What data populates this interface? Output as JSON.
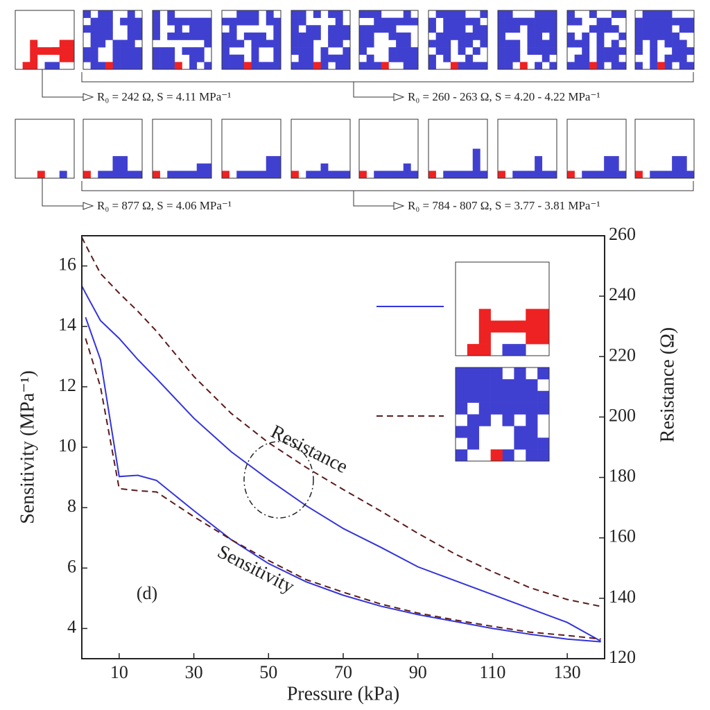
{
  "top_panel": {
    "annotations": [
      "R₀ = 242 Ω,  S = 4.11 MPa⁻¹",
      "R₀ = 260 - 263 Ω,  S = 4.20 - 4.22 MPa⁻¹",
      "R₀ = 877 Ω,  S = 4.06 MPa⁻¹",
      "R₀ = 784 - 807 Ω,  S = 3.77 - 3.81 MPa⁻¹"
    ]
  },
  "chart_data": {
    "type": "line",
    "xlabel": "Pressure (kPa)",
    "ylabel": "Sensitivity (MPa⁻¹)",
    "y2label": "Resistance (Ω)",
    "annotations": [
      "Resistance",
      "Sensitivity",
      "(d)"
    ],
    "x": [
      0,
      1,
      5,
      10,
      15,
      20,
      30,
      40,
      50,
      60,
      70,
      80,
      90,
      100,
      110,
      120,
      130,
      139
    ],
    "series": [
      {
        "color": "#3333dd",
        "linestyle": "solid",
        "axis": "y2",
        "values": [
          243.4,
          241,
          231.9,
          226,
          219,
          212.7,
          199.6,
          188.5,
          179.3,
          170.7,
          163.1,
          156.9,
          150.4,
          145.8,
          141.2,
          136.6,
          132,
          125.8
        ]
      },
      {
        "color": "#5a1a1a",
        "linestyle": "dashed",
        "axis": "y2",
        "values": [
          259.5,
          257,
          247.5,
          241,
          235,
          228.4,
          213.4,
          201.2,
          191.5,
          183.4,
          176,
          168.9,
          161.5,
          154.6,
          148.8,
          143.5,
          139.6,
          137.3
        ]
      },
      {
        "color": "#3333dd",
        "linestyle": "solid",
        "axis": "y",
        "values": [
          null,
          14.3,
          12.9,
          9.03,
          9.07,
          8.9,
          7.9,
          6.94,
          6.15,
          5.55,
          5.1,
          4.74,
          4.46,
          4.23,
          4,
          3.81,
          3.65,
          3.56
        ]
      },
      {
        "color": "#5a1a1a",
        "linestyle": "dashed",
        "axis": "y",
        "values": [
          null,
          13.6,
          12,
          8.63,
          8.56,
          8.52,
          7.7,
          6.94,
          6.25,
          5.62,
          5.2,
          4.81,
          4.51,
          4.28,
          4.07,
          3.88,
          3.77,
          3.65
        ]
      }
    ],
    "xlim": [
      0,
      140
    ],
    "xticks": [
      10,
      30,
      50,
      70,
      90,
      110,
      130
    ],
    "ylim": [
      3,
      17
    ],
    "yticks": [
      4,
      6,
      8,
      10,
      12,
      14,
      16
    ],
    "y2lim": [
      120,
      260
    ],
    "y2ticks": [
      120,
      140,
      160,
      180,
      200,
      220,
      240,
      260
    ]
  }
}
